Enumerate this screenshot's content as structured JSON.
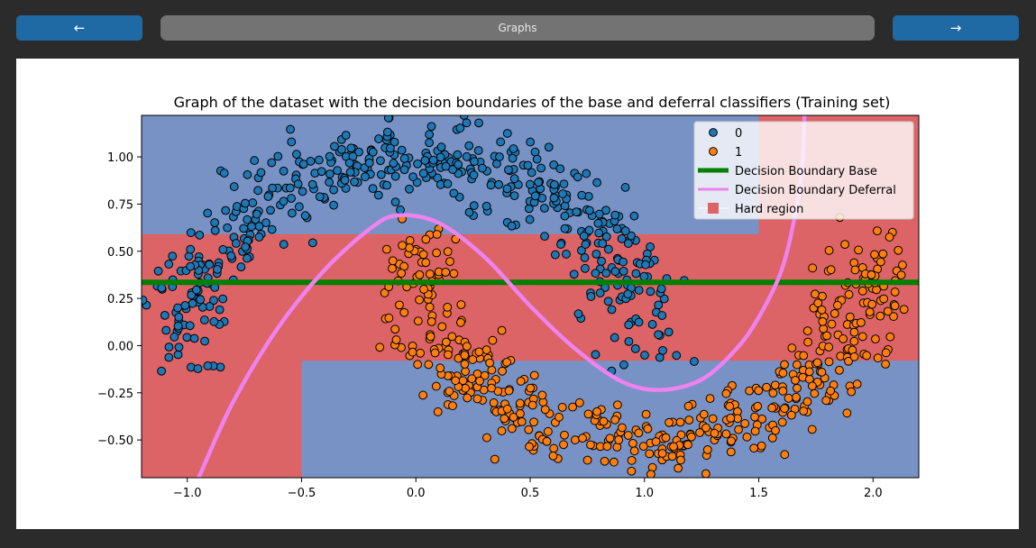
{
  "nav": {
    "prev_label": "←",
    "next_label": "→",
    "title": "Graphs"
  },
  "colors": {
    "blue_region": "#7892c5",
    "red_region": "#dc6366",
    "class0": "#1f77b4",
    "class1": "#ff7f0e",
    "base_boundary": "#008000",
    "deferral_boundary": "#ee82ee"
  },
  "chart_data": {
    "type": "scatter",
    "title": "Graph of the dataset with the decision boundaries of the base and deferral classifiers (Training set)",
    "xlim": [
      -1.2,
      2.2
    ],
    "ylim": [
      -0.7,
      1.22
    ],
    "xticks": [
      -1.0,
      -0.5,
      0.0,
      0.5,
      1.0,
      1.5,
      2.0
    ],
    "xtick_labels": [
      "−1.0",
      "−0.5",
      "0.0",
      "0.5",
      "1.0",
      "1.5",
      "2.0"
    ],
    "yticks": [
      -0.5,
      -0.25,
      0.0,
      0.25,
      0.5,
      0.75,
      1.0
    ],
    "ytick_labels": [
      "−0.50",
      "−0.25",
      "0.00",
      "0.25",
      "0.50",
      "0.75",
      "1.00"
    ],
    "grid": false,
    "legend_position": "top-right",
    "legend": [
      "0",
      "1",
      "Decision Boundary Base",
      "Decision Boundary Deferral",
      "Hard region"
    ],
    "dataset": {
      "kind": "two moons",
      "samples_per_class": 500,
      "noise": 0.1
    },
    "hard_region_polygon": [
      [
        -1.2,
        0.59
      ],
      [
        1.5,
        0.59
      ],
      [
        1.5,
        1.22
      ],
      [
        2.2,
        1.22
      ],
      [
        2.2,
        -0.08
      ],
      [
        -0.5,
        -0.08
      ],
      [
        -0.5,
        -0.7
      ],
      [
        -1.2,
        -0.7
      ]
    ],
    "base_boundary": {
      "y": 0.335
    },
    "deferral_boundary": {
      "x": [
        -0.95,
        -0.8,
        -0.6,
        -0.4,
        -0.2,
        -0.08,
        0.1,
        0.3,
        0.5,
        0.7,
        0.9,
        1.07,
        1.25,
        1.4,
        1.5,
        1.6,
        1.66,
        1.69,
        1.7
      ],
      "y": [
        -0.7,
        -0.3,
        0.1,
        0.4,
        0.62,
        0.69,
        0.65,
        0.47,
        0.21,
        -0.02,
        -0.19,
        -0.235,
        -0.18,
        -0.02,
        0.15,
        0.4,
        0.7,
        0.95,
        1.22
      ]
    }
  }
}
